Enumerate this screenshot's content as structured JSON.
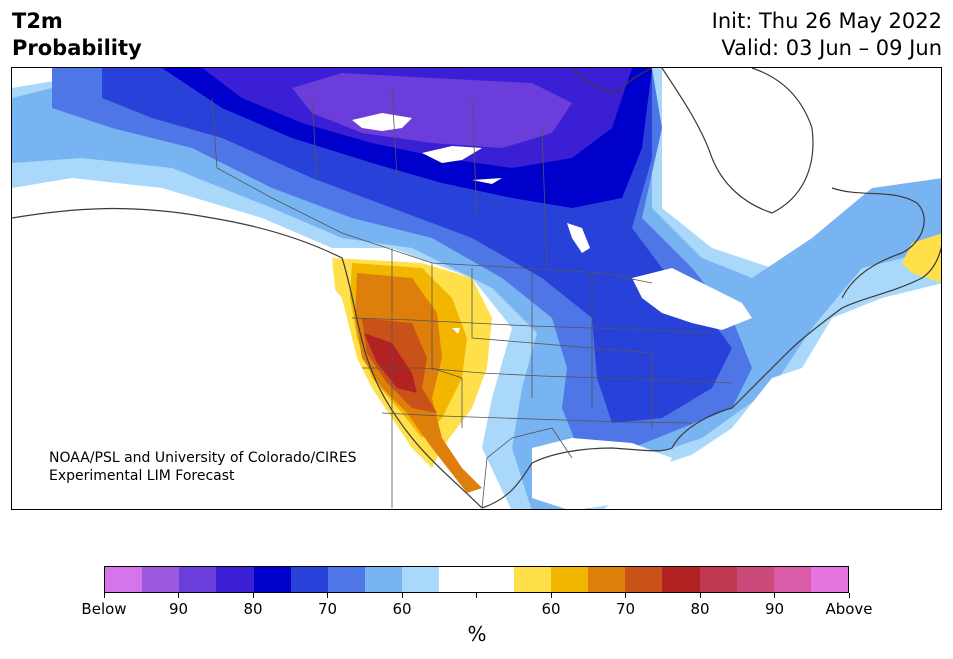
{
  "header": {
    "title_line1": "T2m",
    "title_line2": "Probability",
    "init": "Init: Thu 26 May 2022",
    "valid": "Valid: 03 Jun – 09 Jun"
  },
  "credit": {
    "line1": "NOAA/PSL and University of Colorado/CIRES",
    "line2": "Experimental LIM Forecast"
  },
  "colorbar": {
    "colors": [
      "#d675ea",
      "#9b58e0",
      "#6b3edb",
      "#3a1fd5",
      "#0000cd",
      "#2841d9",
      "#4f76e6",
      "#78b3f2",
      "#aad8fb",
      "#ffffff",
      "#ffffff",
      "#ffe04a",
      "#f2b500",
      "#de7f0b",
      "#c95218",
      "#b22222",
      "#c0394f",
      "#cc4a7a",
      "#da5ca8",
      "#e675e0"
    ],
    "tick_labels": [
      "Below",
      "90",
      "80",
      "70",
      "60",
      "",
      "60",
      "70",
      "80",
      "90",
      "Above"
    ],
    "unit": "%"
  }
}
